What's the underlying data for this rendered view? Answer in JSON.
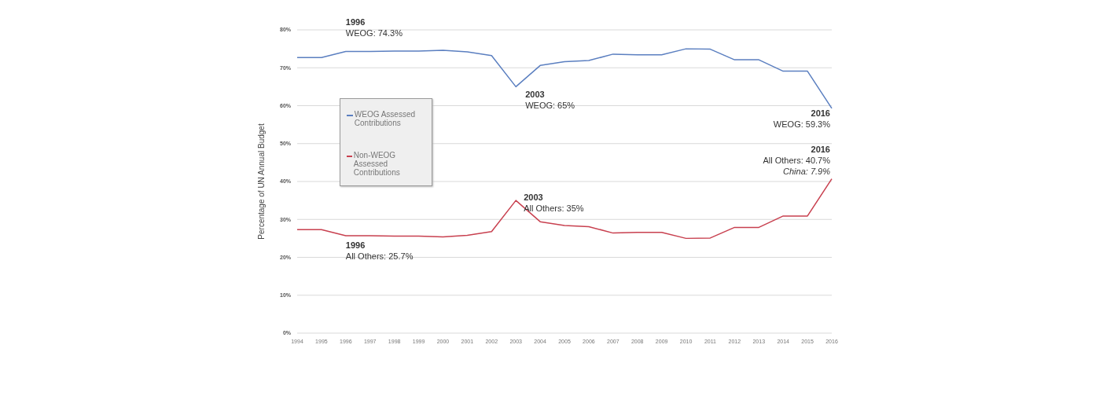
{
  "chart_data": {
    "type": "line",
    "ylabel": "Percentage of UN Annual Budget",
    "categories": [
      "1994",
      "1995",
      "1996",
      "1997",
      "1998",
      "1999",
      "2000",
      "2001",
      "2002",
      "2003",
      "2004",
      "2005",
      "2006",
      "2007",
      "2008",
      "2009",
      "2010",
      "2011",
      "2012",
      "2013",
      "2014",
      "2015",
      "2016"
    ],
    "series": [
      {
        "name": "WEOG Assessed Contributions",
        "color": "#5b7fc0",
        "values": [
          72.7,
          72.7,
          74.3,
          74.3,
          74.4,
          74.4,
          74.6,
          74.2,
          73.2,
          65,
          70.6,
          71.6,
          71.9,
          73.6,
          73.4,
          73.4,
          75.0,
          74.9,
          72.1,
          72.1,
          69.1,
          69.1,
          59.3
        ]
      },
      {
        "name": "Non-WEOG Assessed Contributions",
        "color": "#c8404f",
        "values": [
          27.3,
          27.3,
          25.7,
          25.7,
          25.6,
          25.6,
          25.4,
          25.8,
          26.8,
          35,
          29.4,
          28.4,
          28.1,
          26.4,
          26.6,
          26.6,
          25.0,
          25.1,
          27.9,
          27.9,
          30.9,
          30.9,
          40.7
        ]
      }
    ],
    "ylim": [
      0,
      80
    ],
    "yticks": [
      {
        "value": 0,
        "label": "0%"
      },
      {
        "value": 10,
        "label": "10%"
      },
      {
        "value": 20,
        "label": "20%"
      },
      {
        "value": 30,
        "label": "30%"
      },
      {
        "value": 40,
        "label": "40%"
      },
      {
        "value": 50,
        "label": "50%"
      },
      {
        "value": 60,
        "label": "60%"
      },
      {
        "value": 70,
        "label": "70%"
      },
      {
        "value": 80,
        "label": "80%"
      }
    ],
    "grid": "y",
    "legend": "left",
    "marker": "none",
    "line_style": "solid",
    "annotations": [
      {
        "text": "1996\nWEOG: 74.3%",
        "x": "1996",
        "y": 74.3
      },
      {
        "text": "2003\nWEOG: 65%",
        "x": "2003",
        "y": 65
      },
      {
        "text": "2016\nWEOG: 59.3%",
        "x": "2016",
        "y": 59.3
      },
      {
        "text": "1996\nAll Others: 25.7%",
        "x": "1996",
        "y": 25.7
      },
      {
        "text": "2003\nAll Others: 35%",
        "x": "2003",
        "y": 35
      },
      {
        "text": "2016\nAll Others: 40.7%\nChina: 7.9%",
        "x": "2016",
        "y": 40.7
      }
    ]
  }
}
